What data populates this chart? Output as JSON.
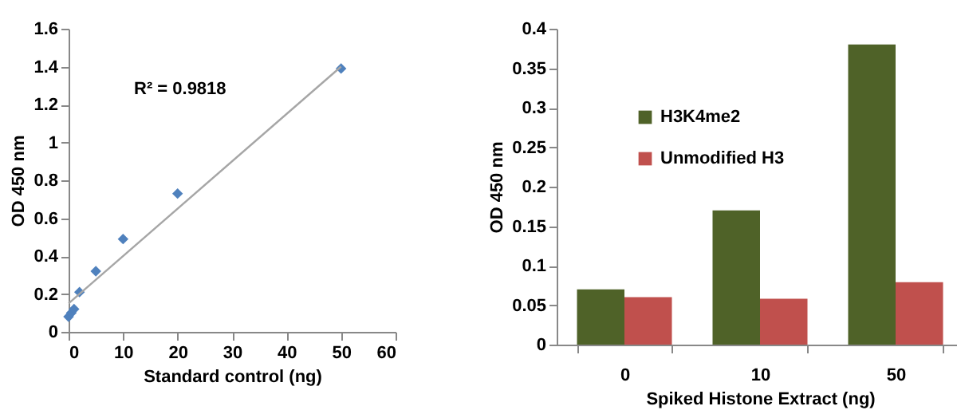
{
  "chart_data": [
    {
      "type": "scatter",
      "xlabel": "Standard control (ng)",
      "ylabel": "OD 450 nm",
      "xlim": [
        0,
        60
      ],
      "xticks": [
        0,
        10,
        20,
        30,
        40,
        50,
        60
      ],
      "ylim": [
        0,
        1.6
      ],
      "yticks": [
        0,
        0.2,
        0.4,
        0.6,
        0.8,
        1,
        1.2,
        1.4,
        1.6
      ],
      "grid": false,
      "legend": false,
      "annotations": [
        "R² = 0.9818"
      ],
      "series": [
        {
          "type": "scatter",
          "marker": "diamond",
          "color": "#4f81bd",
          "x": [
            0,
            0.5,
            1,
            2,
            5,
            10,
            20,
            50
          ],
          "values": [
            0.08,
            0.1,
            0.12,
            0.21,
            0.32,
            0.49,
            0.73,
            1.39
          ]
        },
        {
          "type": "line",
          "marker": "none",
          "color": "#a6a6a6",
          "x": [
            0,
            50
          ],
          "values": [
            0.15,
            1.4
          ]
        }
      ]
    },
    {
      "type": "bar",
      "xlabel": "Spiked Histone Extract (ng)",
      "ylabel": "OD 450 nm",
      "categories": [
        "0",
        "10",
        "50"
      ],
      "ylim": [
        0,
        0.4
      ],
      "yticks": [
        0,
        0.05,
        0.1,
        0.15,
        0.2,
        0.25,
        0.3,
        0.35,
        0.4
      ],
      "grid": false,
      "legend": "top left",
      "series": [
        {
          "name": "H3K4me2",
          "color": "#4f6228",
          "values": [
            0.07,
            0.17,
            0.38
          ]
        },
        {
          "name": "Unmodified H3",
          "color": "#c0504d",
          "values": [
            0.06,
            0.058,
            0.079
          ]
        }
      ]
    }
  ]
}
